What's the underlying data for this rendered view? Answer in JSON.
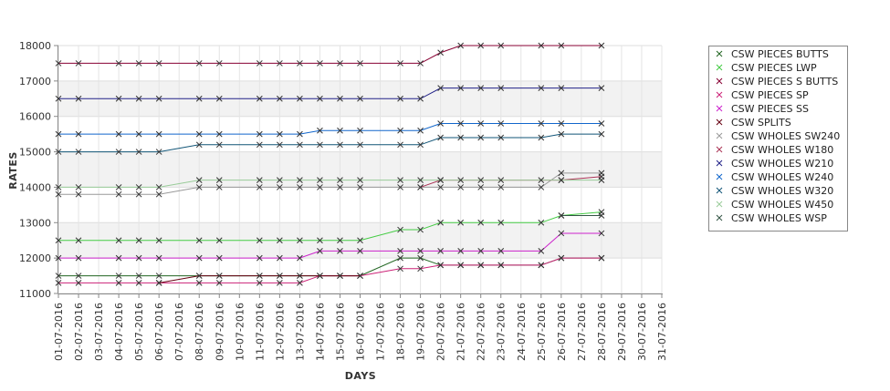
{
  "chart_data": {
    "type": "line",
    "xlabel": "DAYS",
    "ylabel": "RATES",
    "ylim": [
      11000,
      18000
    ],
    "yticks": [
      11000,
      12000,
      13000,
      14000,
      15000,
      16000,
      17000,
      18000
    ],
    "grid": true,
    "legend_position": "right",
    "categories": [
      "01-07-2016",
      "02-07-2016",
      "03-07-2016",
      "04-07-2016",
      "05-07-2016",
      "06-07-2016",
      "07-07-2016",
      "08-07-2016",
      "09-07-2016",
      "10-07-2016",
      "11-07-2016",
      "12-07-2016",
      "13-07-2016",
      "14-07-2016",
      "15-07-2016",
      "16-07-2016",
      "17-07-2016",
      "18-07-2016",
      "19-07-2016",
      "20-07-2016",
      "21-07-2016",
      "22-07-2016",
      "23-07-2016",
      "24-07-2016",
      "25-07-2016",
      "26-07-2016",
      "27-07-2016",
      "28-07-2016",
      "29-07-2016",
      "30-07-2016",
      "31-07-2016"
    ],
    "series": [
      {
        "name": "CSW PIECES BUTTS",
        "color": "#226622",
        "points": [
          [
            "01-07-2016",
            11500
          ],
          [
            "02-07-2016",
            11500
          ],
          [
            "04-07-2016",
            11500
          ],
          [
            "05-07-2016",
            11500
          ],
          [
            "06-07-2016",
            11500
          ],
          [
            "08-07-2016",
            11500
          ],
          [
            "09-07-2016",
            11500
          ],
          [
            "11-07-2016",
            11500
          ],
          [
            "12-07-2016",
            11500
          ],
          [
            "13-07-2016",
            11500
          ],
          [
            "14-07-2016",
            11500
          ],
          [
            "15-07-2016",
            11500
          ],
          [
            "16-07-2016",
            11500
          ],
          [
            "18-07-2016",
            12000
          ],
          [
            "19-07-2016",
            12000
          ],
          [
            "20-07-2016",
            11800
          ],
          [
            "21-07-2016",
            11800
          ],
          [
            "22-07-2016",
            11800
          ],
          [
            "23-07-2016",
            11800
          ],
          [
            "25-07-2016",
            11800
          ],
          [
            "26-07-2016",
            12000
          ],
          [
            "28-07-2016",
            12000
          ]
        ]
      },
      {
        "name": "CSW PIECES LWP",
        "color": "#44cc44",
        "points": [
          [
            "01-07-2016",
            12500
          ],
          [
            "02-07-2016",
            12500
          ],
          [
            "04-07-2016",
            12500
          ],
          [
            "05-07-2016",
            12500
          ],
          [
            "06-07-2016",
            12500
          ],
          [
            "08-07-2016",
            12500
          ],
          [
            "09-07-2016",
            12500
          ],
          [
            "11-07-2016",
            12500
          ],
          [
            "12-07-2016",
            12500
          ],
          [
            "13-07-2016",
            12500
          ],
          [
            "14-07-2016",
            12500
          ],
          [
            "15-07-2016",
            12500
          ],
          [
            "16-07-2016",
            12500
          ],
          [
            "18-07-2016",
            12800
          ],
          [
            "19-07-2016",
            12800
          ],
          [
            "20-07-2016",
            13000
          ],
          [
            "21-07-2016",
            13000
          ],
          [
            "22-07-2016",
            13000
          ],
          [
            "23-07-2016",
            13000
          ],
          [
            "25-07-2016",
            13000
          ],
          [
            "26-07-2016",
            13200
          ],
          [
            "28-07-2016",
            13300
          ]
        ]
      },
      {
        "name": "CSW PIECES S BUTTS",
        "color": "#880033",
        "points": [
          [
            "01-07-2016",
            17500
          ],
          [
            "02-07-2016",
            17500
          ],
          [
            "04-07-2016",
            17500
          ],
          [
            "05-07-2016",
            17500
          ],
          [
            "06-07-2016",
            17500
          ],
          [
            "08-07-2016",
            17500
          ],
          [
            "09-07-2016",
            17500
          ],
          [
            "11-07-2016",
            17500
          ],
          [
            "12-07-2016",
            17500
          ],
          [
            "13-07-2016",
            17500
          ],
          [
            "14-07-2016",
            17500
          ],
          [
            "15-07-2016",
            17500
          ],
          [
            "16-07-2016",
            17500
          ],
          [
            "18-07-2016",
            17500
          ],
          [
            "19-07-2016",
            17500
          ],
          [
            "20-07-2016",
            17800
          ],
          [
            "21-07-2016",
            18000
          ],
          [
            "22-07-2016",
            18000
          ],
          [
            "23-07-2016",
            18000
          ],
          [
            "25-07-2016",
            18000
          ],
          [
            "26-07-2016",
            18000
          ],
          [
            "28-07-2016",
            18000
          ]
        ]
      },
      {
        "name": "CSW PIECES SP",
        "color": "#cc2277",
        "points": [
          [
            "01-07-2016",
            11300
          ],
          [
            "02-07-2016",
            11300
          ],
          [
            "04-07-2016",
            11300
          ],
          [
            "05-07-2016",
            11300
          ],
          [
            "06-07-2016",
            11300
          ],
          [
            "08-07-2016",
            11300
          ],
          [
            "09-07-2016",
            11300
          ],
          [
            "11-07-2016",
            11300
          ],
          [
            "12-07-2016",
            11300
          ],
          [
            "13-07-2016",
            11300
          ],
          [
            "14-07-2016",
            11500
          ],
          [
            "15-07-2016",
            11500
          ],
          [
            "16-07-2016",
            11500
          ],
          [
            "18-07-2016",
            11700
          ],
          [
            "19-07-2016",
            11700
          ],
          [
            "20-07-2016",
            11800
          ],
          [
            "21-07-2016",
            11800
          ],
          [
            "22-07-2016",
            11800
          ],
          [
            "23-07-2016",
            11800
          ],
          [
            "25-07-2016",
            11800
          ],
          [
            "26-07-2016",
            12000
          ],
          [
            "28-07-2016",
            12000
          ]
        ]
      },
      {
        "name": "CSW PIECES SS",
        "color": "#cc22cc",
        "points": [
          [
            "01-07-2016",
            12000
          ],
          [
            "02-07-2016",
            12000
          ],
          [
            "04-07-2016",
            12000
          ],
          [
            "05-07-2016",
            12000
          ],
          [
            "06-07-2016",
            12000
          ],
          [
            "08-07-2016",
            12000
          ],
          [
            "09-07-2016",
            12000
          ],
          [
            "11-07-2016",
            12000
          ],
          [
            "12-07-2016",
            12000
          ],
          [
            "13-07-2016",
            12000
          ],
          [
            "14-07-2016",
            12200
          ],
          [
            "15-07-2016",
            12200
          ],
          [
            "16-07-2016",
            12200
          ],
          [
            "18-07-2016",
            12200
          ],
          [
            "19-07-2016",
            12200
          ],
          [
            "20-07-2016",
            12200
          ],
          [
            "21-07-2016",
            12200
          ],
          [
            "22-07-2016",
            12200
          ],
          [
            "23-07-2016",
            12200
          ],
          [
            "25-07-2016",
            12200
          ],
          [
            "26-07-2016",
            12700
          ],
          [
            "28-07-2016",
            12700
          ]
        ]
      },
      {
        "name": "CSW SPLITS",
        "color": "#660011",
        "points": [
          [
            "06-07-2016",
            11300
          ],
          [
            "08-07-2016",
            11500
          ],
          [
            "09-07-2016",
            11500
          ],
          [
            "11-07-2016",
            11500
          ],
          [
            "12-07-2016",
            11500
          ],
          [
            "13-07-2016",
            11500
          ],
          [
            "14-07-2016",
            11500
          ],
          [
            "15-07-2016",
            11500
          ],
          [
            "16-07-2016",
            11500
          ]
        ]
      },
      {
        "name": "CSW WHOLES SW240",
        "color": "#999999",
        "points": [
          [
            "01-07-2016",
            13800
          ],
          [
            "02-07-2016",
            13800
          ],
          [
            "04-07-2016",
            13800
          ],
          [
            "05-07-2016",
            13800
          ],
          [
            "06-07-2016",
            13800
          ],
          [
            "08-07-2016",
            14000
          ],
          [
            "09-07-2016",
            14000
          ],
          [
            "11-07-2016",
            14000
          ],
          [
            "12-07-2016",
            14000
          ],
          [
            "13-07-2016",
            14000
          ],
          [
            "14-07-2016",
            14000
          ],
          [
            "15-07-2016",
            14000
          ],
          [
            "16-07-2016",
            14000
          ],
          [
            "18-07-2016",
            14000
          ],
          [
            "19-07-2016",
            14000
          ],
          [
            "20-07-2016",
            14000
          ],
          [
            "21-07-2016",
            14000
          ],
          [
            "22-07-2016",
            14000
          ],
          [
            "23-07-2016",
            14000
          ],
          [
            "25-07-2016",
            14000
          ],
          [
            "26-07-2016",
            14400
          ],
          [
            "28-07-2016",
            14400
          ]
        ]
      },
      {
        "name": "CSW WHOLES W180",
        "color": "#aa3355",
        "points": [
          [
            "19-07-2016",
            14000
          ],
          [
            "20-07-2016",
            14200
          ],
          [
            "26-07-2016",
            14200
          ],
          [
            "28-07-2016",
            14300
          ]
        ]
      },
      {
        "name": "CSW WHOLES W210",
        "color": "#222288",
        "points": [
          [
            "01-07-2016",
            16500
          ],
          [
            "02-07-2016",
            16500
          ],
          [
            "04-07-2016",
            16500
          ],
          [
            "05-07-2016",
            16500
          ],
          [
            "06-07-2016",
            16500
          ],
          [
            "08-07-2016",
            16500
          ],
          [
            "09-07-2016",
            16500
          ],
          [
            "11-07-2016",
            16500
          ],
          [
            "12-07-2016",
            16500
          ],
          [
            "13-07-2016",
            16500
          ],
          [
            "14-07-2016",
            16500
          ],
          [
            "15-07-2016",
            16500
          ],
          [
            "16-07-2016",
            16500
          ],
          [
            "18-07-2016",
            16500
          ],
          [
            "19-07-2016",
            16500
          ],
          [
            "20-07-2016",
            16800
          ],
          [
            "21-07-2016",
            16800
          ],
          [
            "22-07-2016",
            16800
          ],
          [
            "23-07-2016",
            16800
          ],
          [
            "25-07-2016",
            16800
          ],
          [
            "26-07-2016",
            16800
          ],
          [
            "28-07-2016",
            16800
          ]
        ]
      },
      {
        "name": "CSW WHOLES W240",
        "color": "#1166cc",
        "points": [
          [
            "01-07-2016",
            15500
          ],
          [
            "02-07-2016",
            15500
          ],
          [
            "04-07-2016",
            15500
          ],
          [
            "05-07-2016",
            15500
          ],
          [
            "06-07-2016",
            15500
          ],
          [
            "08-07-2016",
            15500
          ],
          [
            "09-07-2016",
            15500
          ],
          [
            "11-07-2016",
            15500
          ],
          [
            "12-07-2016",
            15500
          ],
          [
            "13-07-2016",
            15500
          ],
          [
            "14-07-2016",
            15600
          ],
          [
            "15-07-2016",
            15600
          ],
          [
            "16-07-2016",
            15600
          ],
          [
            "18-07-2016",
            15600
          ],
          [
            "19-07-2016",
            15600
          ],
          [
            "20-07-2016",
            15800
          ],
          [
            "21-07-2016",
            15800
          ],
          [
            "22-07-2016",
            15800
          ],
          [
            "23-07-2016",
            15800
          ],
          [
            "25-07-2016",
            15800
          ],
          [
            "26-07-2016",
            15800
          ],
          [
            "28-07-2016",
            15800
          ]
        ]
      },
      {
        "name": "CSW WHOLES W320",
        "color": "#115577",
        "points": [
          [
            "01-07-2016",
            15000
          ],
          [
            "02-07-2016",
            15000
          ],
          [
            "04-07-2016",
            15000
          ],
          [
            "05-07-2016",
            15000
          ],
          [
            "06-07-2016",
            15000
          ],
          [
            "08-07-2016",
            15200
          ],
          [
            "09-07-2016",
            15200
          ],
          [
            "11-07-2016",
            15200
          ],
          [
            "12-07-2016",
            15200
          ],
          [
            "13-07-2016",
            15200
          ],
          [
            "14-07-2016",
            15200
          ],
          [
            "15-07-2016",
            15200
          ],
          [
            "16-07-2016",
            15200
          ],
          [
            "18-07-2016",
            15200
          ],
          [
            "19-07-2016",
            15200
          ],
          [
            "20-07-2016",
            15400
          ],
          [
            "21-07-2016",
            15400
          ],
          [
            "22-07-2016",
            15400
          ],
          [
            "23-07-2016",
            15400
          ],
          [
            "25-07-2016",
            15400
          ],
          [
            "26-07-2016",
            15500
          ],
          [
            "28-07-2016",
            15500
          ]
        ]
      },
      {
        "name": "CSW WHOLES W450",
        "color": "#99cc99",
        "points": [
          [
            "01-07-2016",
            14000
          ],
          [
            "02-07-2016",
            14000
          ],
          [
            "04-07-2016",
            14000
          ],
          [
            "05-07-2016",
            14000
          ],
          [
            "06-07-2016",
            14000
          ],
          [
            "08-07-2016",
            14200
          ],
          [
            "09-07-2016",
            14200
          ],
          [
            "11-07-2016",
            14200
          ],
          [
            "12-07-2016",
            14200
          ],
          [
            "13-07-2016",
            14200
          ],
          [
            "14-07-2016",
            14200
          ],
          [
            "15-07-2016",
            14200
          ],
          [
            "16-07-2016",
            14200
          ],
          [
            "18-07-2016",
            14200
          ],
          [
            "19-07-2016",
            14200
          ],
          [
            "20-07-2016",
            14200
          ],
          [
            "21-07-2016",
            14200
          ],
          [
            "22-07-2016",
            14200
          ],
          [
            "23-07-2016",
            14200
          ],
          [
            "25-07-2016",
            14200
          ],
          [
            "26-07-2016",
            14200
          ],
          [
            "28-07-2016",
            14200
          ]
        ]
      },
      {
        "name": "CSW WHOLES WSP",
        "color": "#335544",
        "points": [
          [
            "26-07-2016",
            13200
          ],
          [
            "28-07-2016",
            13200
          ]
        ]
      }
    ]
  }
}
